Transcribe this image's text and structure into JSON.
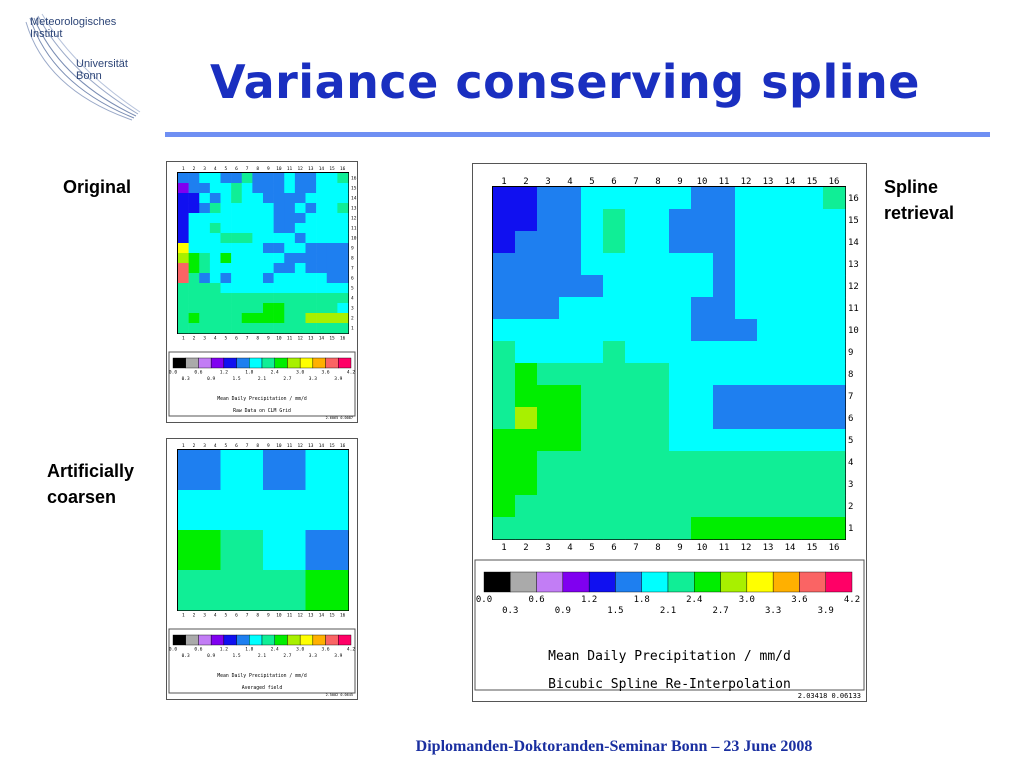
{
  "header": {
    "logo_lines": [
      "Meteorologisches",
      "Institut",
      "Universität",
      "Bonn"
    ],
    "title": "Variance conserving spline"
  },
  "labels": {
    "original": "Original",
    "coarsen_line1": "Artificially",
    "coarsen_line2": "coarsen",
    "spline_line1": "Spline",
    "spline_line2": "retrieval"
  },
  "footer": "Diplomanden-Doktoranden-Seminar Bonn – 23 June 2008",
  "colors": {
    "title": "#1a2fc0",
    "rule": "#6f8ff3",
    "palette": [
      "#000000",
      "#aaaaaa",
      "#c27df5",
      "#8000f0",
      "#1010f0",
      "#1e7ff0",
      "#00ffff",
      "#10ee96",
      "#00ee00",
      "#a8f000",
      "#ffff00",
      "#ffb000",
      "#fa6464",
      "#ff0066"
    ]
  },
  "chart_data": [
    {
      "type": "heatmap",
      "name": "original",
      "x_ticks": [
        "1",
        "2",
        "3",
        "4",
        "5",
        "6",
        "7",
        "8",
        "9",
        "10",
        "11",
        "12",
        "13",
        "14",
        "15",
        "16"
      ],
      "y_ticks": [
        "16",
        "15",
        "14",
        "13",
        "12",
        "11",
        "10",
        "9",
        "8",
        "7",
        "6",
        "5",
        "4",
        "3",
        "2",
        "1"
      ],
      "legend_boundaries": [
        "0.0",
        "0.3",
        "0.6",
        "0.9",
        "1.2",
        "1.5",
        "1.8",
        "2.1",
        "2.4",
        "2.7",
        "3.0",
        "3.3",
        "3.6",
        "3.9",
        "4.2"
      ],
      "legend_caption_1": "Mean Daily Precipitation / mm/d",
      "legend_caption_2": "Raw Data on CLM Grid",
      "legend_id": "2.6065 0.0087",
      "cells": [
        [
          5,
          5,
          6,
          6,
          5,
          5,
          7,
          5,
          5,
          5,
          6,
          5,
          5,
          6,
          6,
          7
        ],
        [
          3,
          5,
          5,
          6,
          6,
          7,
          6,
          5,
          5,
          5,
          6,
          5,
          5,
          6,
          6,
          6
        ],
        [
          4,
          4,
          6,
          5,
          6,
          7,
          6,
          6,
          5,
          5,
          5,
          5,
          6,
          6,
          6,
          6
        ],
        [
          4,
          4,
          5,
          7,
          6,
          6,
          6,
          6,
          6,
          5,
          5,
          6,
          5,
          6,
          6,
          7
        ],
        [
          4,
          6,
          6,
          6,
          6,
          6,
          6,
          6,
          6,
          5,
          5,
          5,
          6,
          6,
          6,
          6
        ],
        [
          4,
          6,
          6,
          7,
          6,
          6,
          6,
          6,
          6,
          5,
          5,
          6,
          6,
          6,
          6,
          6
        ],
        [
          4,
          6,
          6,
          6,
          7,
          7,
          7,
          6,
          6,
          6,
          6,
          5,
          6,
          6,
          6,
          6
        ],
        [
          10,
          6,
          6,
          6,
          6,
          6,
          6,
          6,
          5,
          5,
          6,
          6,
          5,
          5,
          5,
          5
        ],
        [
          9,
          8,
          7,
          6,
          8,
          6,
          6,
          6,
          6,
          6,
          5,
          5,
          5,
          5,
          5,
          5
        ],
        [
          12,
          8,
          7,
          6,
          6,
          6,
          6,
          6,
          6,
          5,
          5,
          6,
          5,
          5,
          5,
          5
        ],
        [
          12,
          7,
          5,
          6,
          5,
          6,
          6,
          6,
          5,
          6,
          6,
          6,
          6,
          6,
          5,
          5
        ],
        [
          7,
          7,
          7,
          7,
          6,
          6,
          6,
          6,
          6,
          6,
          6,
          6,
          6,
          6,
          6,
          6
        ],
        [
          7,
          7,
          7,
          7,
          7,
          7,
          7,
          7,
          7,
          7,
          7,
          7,
          7,
          7,
          7,
          7
        ],
        [
          7,
          7,
          7,
          7,
          7,
          7,
          7,
          7,
          8,
          8,
          7,
          7,
          7,
          7,
          7,
          6
        ],
        [
          7,
          8,
          7,
          7,
          7,
          7,
          8,
          8,
          8,
          8,
          7,
          7,
          9,
          9,
          9,
          9
        ],
        [
          7,
          7,
          7,
          7,
          7,
          7,
          7,
          7,
          7,
          7,
          7,
          7,
          7,
          7,
          7,
          7
        ]
      ]
    },
    {
      "type": "heatmap",
      "name": "coarsened",
      "x_ticks": [
        "1",
        "2",
        "3",
        "4",
        "5",
        "6",
        "7",
        "8",
        "9",
        "10",
        "11",
        "12",
        "13",
        "14",
        "15",
        "16"
      ],
      "legend_boundaries": [
        "0.0",
        "0.3",
        "0.6",
        "0.9",
        "1.2",
        "1.5",
        "1.8",
        "2.1",
        "2.4",
        "2.7",
        "3.0",
        "3.3",
        "3.6",
        "3.9",
        "4.2"
      ],
      "legend_caption_1": "Mean Daily Precipitation / mm/d",
      "legend_caption_2": "Averaged field",
      "legend_id": "2.5002 0.0645",
      "cells": [
        [
          5,
          6,
          5,
          6
        ],
        [
          6,
          6,
          6,
          6
        ],
        [
          8,
          7,
          6,
          5
        ],
        [
          7,
          7,
          7,
          8
        ]
      ]
    },
    {
      "type": "heatmap",
      "name": "spline",
      "x_ticks": [
        "1",
        "2",
        "3",
        "4",
        "5",
        "6",
        "7",
        "8",
        "9",
        "10",
        "11",
        "12",
        "13",
        "14",
        "15",
        "16"
      ],
      "y_ticks": [
        "16",
        "15",
        "14",
        "13",
        "12",
        "11",
        "10",
        "9",
        "8",
        "7",
        "6",
        "5",
        "4",
        "3",
        "2",
        "1"
      ],
      "legend_boundaries": [
        "0.0",
        "0.3",
        "0.6",
        "0.9",
        "1.2",
        "1.5",
        "1.8",
        "2.1",
        "2.4",
        "2.7",
        "3.0",
        "3.3",
        "3.6",
        "3.9",
        "4.2"
      ],
      "legend_caption_1": "Mean Daily Precipitation / mm/d",
      "legend_caption_2": "Bicubic Spline Re-Interpolation",
      "legend_id": "2.03418 0.06133",
      "cells": [
        [
          4,
          4,
          5,
          5,
          6,
          6,
          6,
          6,
          6,
          5,
          5,
          6,
          6,
          6,
          6,
          7
        ],
        [
          4,
          4,
          5,
          5,
          6,
          7,
          6,
          6,
          5,
          5,
          5,
          6,
          6,
          6,
          6,
          6
        ],
        [
          4,
          5,
          5,
          5,
          6,
          7,
          6,
          6,
          5,
          5,
          5,
          6,
          6,
          6,
          6,
          6
        ],
        [
          5,
          5,
          5,
          5,
          6,
          6,
          6,
          6,
          6,
          6,
          5,
          6,
          6,
          6,
          6,
          6
        ],
        [
          5,
          5,
          5,
          5,
          5,
          6,
          6,
          6,
          6,
          6,
          5,
          6,
          6,
          6,
          6,
          6
        ],
        [
          5,
          5,
          5,
          6,
          6,
          6,
          6,
          6,
          6,
          5,
          5,
          6,
          6,
          6,
          6,
          6
        ],
        [
          6,
          6,
          6,
          6,
          6,
          6,
          6,
          6,
          6,
          5,
          5,
          5,
          6,
          6,
          6,
          6
        ],
        [
          7,
          6,
          6,
          6,
          6,
          7,
          6,
          6,
          6,
          6,
          6,
          6,
          6,
          6,
          6,
          6
        ],
        [
          7,
          8,
          7,
          7,
          7,
          7,
          7,
          7,
          6,
          6,
          6,
          6,
          6,
          6,
          6,
          6
        ],
        [
          7,
          8,
          8,
          8,
          7,
          7,
          7,
          7,
          6,
          6,
          5,
          5,
          5,
          5,
          5,
          5
        ],
        [
          7,
          9,
          8,
          8,
          7,
          7,
          7,
          7,
          6,
          6,
          5,
          5,
          5,
          5,
          5,
          5
        ],
        [
          8,
          8,
          8,
          8,
          7,
          7,
          7,
          7,
          6,
          6,
          6,
          6,
          6,
          6,
          6,
          6
        ],
        [
          8,
          8,
          7,
          7,
          7,
          7,
          7,
          7,
          7,
          7,
          7,
          7,
          7,
          7,
          7,
          7
        ],
        [
          8,
          8,
          7,
          7,
          7,
          7,
          7,
          7,
          7,
          7,
          7,
          7,
          7,
          7,
          7,
          7
        ],
        [
          8,
          7,
          7,
          7,
          7,
          7,
          7,
          7,
          7,
          7,
          7,
          7,
          7,
          7,
          7,
          7
        ],
        [
          7,
          7,
          7,
          7,
          7,
          7,
          7,
          7,
          7,
          8,
          8,
          8,
          8,
          8,
          8,
          8
        ]
      ]
    }
  ]
}
